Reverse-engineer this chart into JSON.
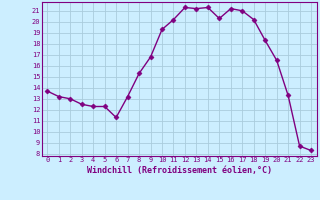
{
  "hours": [
    0,
    1,
    2,
    3,
    4,
    5,
    6,
    7,
    8,
    9,
    10,
    11,
    12,
    13,
    14,
    15,
    16,
    17,
    18,
    19,
    20,
    21,
    22,
    23
  ],
  "values": [
    13.7,
    13.2,
    13.0,
    12.5,
    12.3,
    12.3,
    11.3,
    13.2,
    15.3,
    16.8,
    19.3,
    20.2,
    21.3,
    21.2,
    21.3,
    20.3,
    21.2,
    21.0,
    20.2,
    18.3,
    16.5,
    13.3,
    8.7,
    8.3
  ],
  "line_color": "#800080",
  "marker": "D",
  "marker_size": 2.5,
  "bg_color": "#cceeff",
  "grid_color": "#aaccdd",
  "xlabel": "Windchill (Refroidissement éolien,°C)",
  "ylabel_ticks": [
    8,
    9,
    10,
    11,
    12,
    13,
    14,
    15,
    16,
    17,
    18,
    19,
    20,
    21
  ],
  "xticks": [
    0,
    1,
    2,
    3,
    4,
    5,
    6,
    7,
    8,
    9,
    10,
    11,
    12,
    13,
    14,
    15,
    16,
    17,
    18,
    19,
    20,
    21,
    22,
    23
  ],
  "ylim": [
    7.8,
    21.8
  ],
  "xlim": [
    -0.5,
    23.5
  ],
  "tick_color": "#800080",
  "label_color": "#800080",
  "spine_color": "#800080",
  "line_width": 1.0
}
